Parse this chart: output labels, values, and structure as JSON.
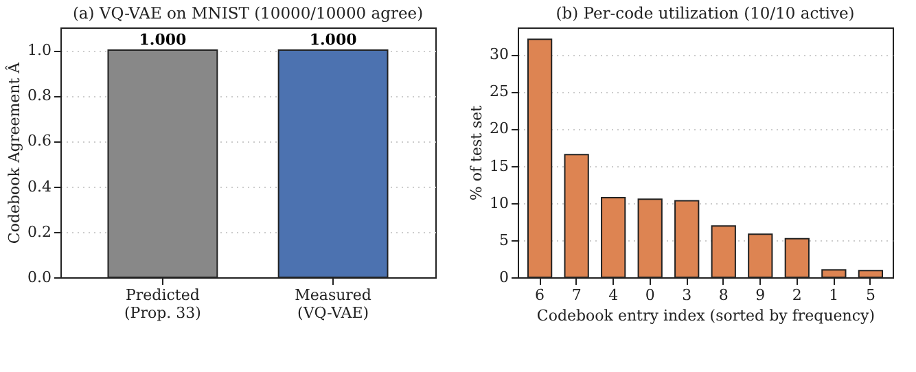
{
  "chart_data": [
    {
      "type": "bar",
      "title": "(a) VQ-VAE on MNIST  (10000/10000 agree)",
      "ylabel": "Codebook Agreement Â",
      "categories": [
        "Predicted\n(Prop. 33)",
        "Measured\n(VQ-VAE)"
      ],
      "values": [
        1.0,
        1.0
      ],
      "colors": [
        "#888888",
        "#4c72b0"
      ],
      "value_labels": [
        "1.000",
        "1.000"
      ],
      "ylim": [
        0,
        1.1
      ],
      "yticks": [
        {
          "value": 0,
          "label": "0.0"
        },
        {
          "value": 0.2,
          "label": "0.2"
        },
        {
          "value": 0.4,
          "label": "0.4"
        },
        {
          "value": 0.6,
          "label": "0.6"
        },
        {
          "value": 0.8,
          "label": "0.8"
        },
        {
          "value": 1,
          "label": "1.0"
        }
      ],
      "grid": "y"
    },
    {
      "type": "bar",
      "title": "(b) Per-code utilization (10/10 active)",
      "xlabel": "Codebook entry index (sorted by frequency)",
      "ylabel": "% of test set",
      "categories": [
        "6",
        "7",
        "4",
        "0",
        "3",
        "8",
        "9",
        "2",
        "1",
        "5"
      ],
      "values": [
        32.0,
        16.5,
        10.7,
        10.5,
        10.3,
        6.9,
        5.8,
        5.2,
        1.0,
        0.9
      ],
      "color": "#dd8452",
      "ylim": [
        0,
        33.6
      ],
      "yticks": [
        0,
        5,
        10,
        15,
        20,
        25,
        30
      ],
      "grid": "y"
    }
  ]
}
